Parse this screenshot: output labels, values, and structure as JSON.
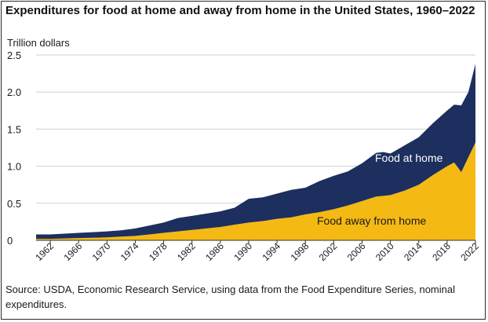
{
  "title": "Expenditures for food at home and away from home in the United States, 1960–2022",
  "source": "Source: USDA, Economic Research Service, using data from the Food Expenditure Series, nominal expenditures.",
  "chart_data": {
    "type": "area",
    "stacked": true,
    "ylabel": "Trillion dollars",
    "xlabel": "",
    "ylim": [
      0,
      2.5
    ],
    "yticks": [
      "0",
      "0.5",
      "1.0",
      "1.5",
      "2.0",
      "2.5"
    ],
    "xlim": [
      1960,
      2022
    ],
    "xticks": [
      "1962",
      "1966",
      "1970",
      "1974",
      "1978",
      "1982",
      "1986",
      "1990",
      "1994",
      "1998",
      "2002",
      "2006",
      "2010",
      "2014",
      "2018",
      "2022"
    ],
    "grid": "horizontal",
    "x": [
      1960,
      1962,
      1964,
      1966,
      1968,
      1970,
      1972,
      1974,
      1976,
      1978,
      1980,
      1982,
      1984,
      1986,
      1988,
      1990,
      1992,
      1994,
      1996,
      1998,
      2000,
      2002,
      2004,
      2006,
      2008,
      2009,
      2010,
      2012,
      2014,
      2016,
      2018,
      2019,
      2020,
      2021,
      2022
    ],
    "series": [
      {
        "name": "Food away from home",
        "color": "#f5b914",
        "values": [
          0.02,
          0.02,
          0.025,
          0.03,
          0.035,
          0.04,
          0.05,
          0.06,
          0.08,
          0.1,
          0.12,
          0.14,
          0.16,
          0.18,
          0.21,
          0.24,
          0.26,
          0.29,
          0.31,
          0.35,
          0.38,
          0.42,
          0.47,
          0.53,
          0.59,
          0.6,
          0.61,
          0.67,
          0.75,
          0.88,
          1.0,
          1.05,
          0.92,
          1.12,
          1.32
        ]
      },
      {
        "name": "Food at home",
        "color": "#1c2f5e",
        "values": [
          0.06,
          0.06,
          0.065,
          0.07,
          0.075,
          0.08,
          0.085,
          0.1,
          0.12,
          0.14,
          0.18,
          0.19,
          0.2,
          0.21,
          0.23,
          0.32,
          0.32,
          0.34,
          0.37,
          0.36,
          0.42,
          0.45,
          0.46,
          0.51,
          0.59,
          0.59,
          0.56,
          0.61,
          0.64,
          0.7,
          0.75,
          0.78,
          0.9,
          0.88,
          1.06
        ]
      }
    ],
    "annotations": [
      {
        "text": "Food at home",
        "series": "Food at home",
        "color": "#ffffff"
      },
      {
        "text": "Food away from home",
        "series": "Food away from home",
        "color": "#1a1a1a"
      }
    ]
  }
}
